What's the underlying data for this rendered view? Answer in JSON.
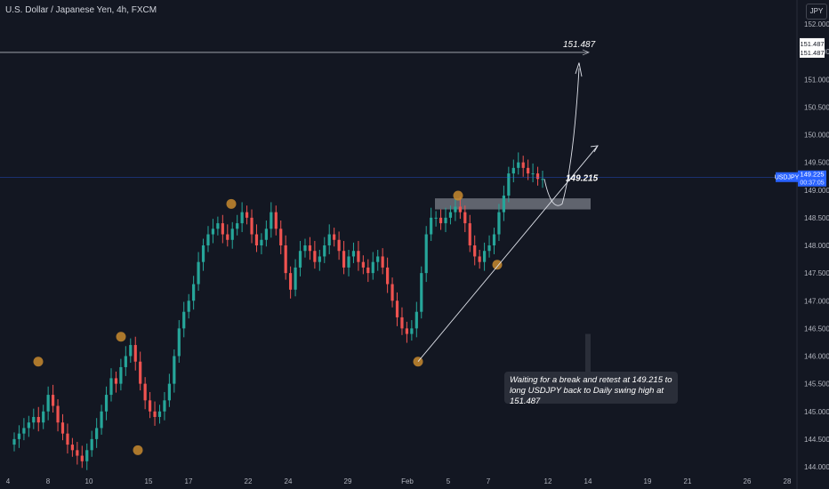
{
  "title": "U.S. Dollar / Japanese Yen, 4h, FXCM",
  "currency": "JPY",
  "note": "Waiting for a break and retest at 149.215 to long USDJPY back to Daily swing high at 151.487",
  "target_label": "151.487",
  "level_label": "149.215",
  "price_tag": "USDJPY",
  "price_box": [
    "149.225",
    "00:37:05"
  ],
  "target_box": [
    "151.487",
    "151.487"
  ],
  "colors": {
    "up": "#26a69a",
    "down": "#ef5350",
    "background": "#131722",
    "swing": "#c88a2e",
    "axis_text": "#b2b5be"
  },
  "chart_data": {
    "type": "candlestick",
    "title": "U.S. Dollar / Japanese Yen, 4h, FXCM",
    "ylim": [
      144.0,
      152.0
    ],
    "y_ticks": [
      144.0,
      144.5,
      145.0,
      145.5,
      146.0,
      146.5,
      147.0,
      147.5,
      148.0,
      148.5,
      149.0,
      149.5,
      150.0,
      150.5,
      151.0,
      151.5,
      152.0
    ],
    "x_ticks": [
      "4",
      "8",
      "10",
      "15",
      "17",
      "22",
      "24",
      "29",
      "Feb",
      "5",
      "7",
      "12",
      "14",
      "19",
      "21",
      "26",
      "28"
    ],
    "current_price": 149.225,
    "target_level": 151.487,
    "breakout_level": 149.215,
    "zone": [
      148.65,
      148.85
    ],
    "closes": [
      144.5,
      144.6,
      144.7,
      144.8,
      144.9,
      144.8,
      145.0,
      145.3,
      145.1,
      144.8,
      144.6,
      144.4,
      144.3,
      144.2,
      144.1,
      144.3,
      144.5,
      144.7,
      145.0,
      145.3,
      145.6,
      145.5,
      145.8,
      146.0,
      146.2,
      145.9,
      145.5,
      145.2,
      145.0,
      144.9,
      145.0,
      145.2,
      145.5,
      146.0,
      146.5,
      146.8,
      147.0,
      147.3,
      147.7,
      148.0,
      148.2,
      148.3,
      148.4,
      148.2,
      148.1,
      148.3,
      148.4,
      148.6,
      148.5,
      148.2,
      148.0,
      148.1,
      148.3,
      148.6,
      148.3,
      148.0,
      147.5,
      147.2,
      147.6,
      147.9,
      148.0,
      147.9,
      147.7,
      147.8,
      148.0,
      148.2,
      148.1,
      147.9,
      147.6,
      147.8,
      147.9,
      147.7,
      147.6,
      147.5,
      147.7,
      147.8,
      147.6,
      147.3,
      147.0,
      146.7,
      146.5,
      146.4,
      146.5,
      146.8,
      147.5,
      148.2,
      148.5,
      148.5,
      148.4,
      148.5,
      148.6,
      148.7,
      148.6,
      148.4,
      148.0,
      147.8,
      147.7,
      147.9,
      148.0,
      148.2,
      148.6,
      148.9,
      149.3,
      149.4,
      149.5,
      149.4,
      149.3,
      149.3,
      149.2,
      149.2
    ],
    "swing_points": [
      {
        "label": "low",
        "value": 145.9
      },
      {
        "label": "high",
        "value": 146.35
      },
      {
        "label": "low",
        "value": 144.3
      },
      {
        "label": "high",
        "value": 148.75
      },
      {
        "label": "low",
        "value": 145.9
      },
      {
        "label": "high",
        "value": 148.9
      },
      {
        "label": "low",
        "value": 147.65
      }
    ]
  }
}
